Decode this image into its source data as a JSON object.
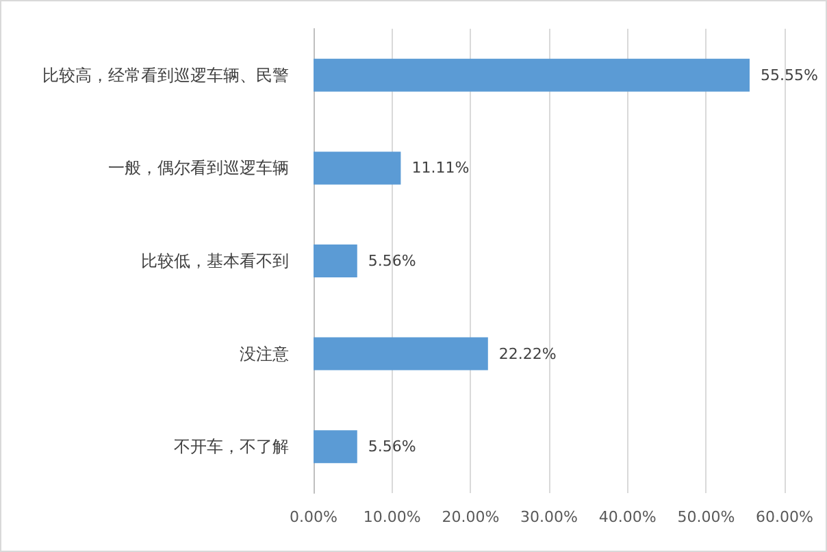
{
  "chart_data": {
    "type": "bar",
    "orientation": "horizontal",
    "categories": [
      "比较高，经常看到巡逻车辆、民警",
      "一般，偶尔看到巡逻车辆",
      "比较低，基本看不到",
      "没注意",
      "不开车，不了解"
    ],
    "values": [
      55.55,
      11.11,
      5.56,
      22.22,
      5.56
    ],
    "color": "#5b9bd5",
    "value_labels": [
      "55.55%",
      "11.11%",
      "5.56%",
      "22.22%",
      "5.56%"
    ],
    "xlim": [
      0,
      60
    ],
    "xticks": [
      {
        "value": 0,
        "label": "0.00%"
      },
      {
        "value": 10,
        "label": "10.00%"
      },
      {
        "value": 20,
        "label": "20.00%"
      },
      {
        "value": 30,
        "label": "30.00%"
      },
      {
        "value": 40,
        "label": "40.00%"
      },
      {
        "value": 50,
        "label": "50.00%"
      },
      {
        "value": 60,
        "label": "60.00%"
      }
    ],
    "grid": "x"
  }
}
